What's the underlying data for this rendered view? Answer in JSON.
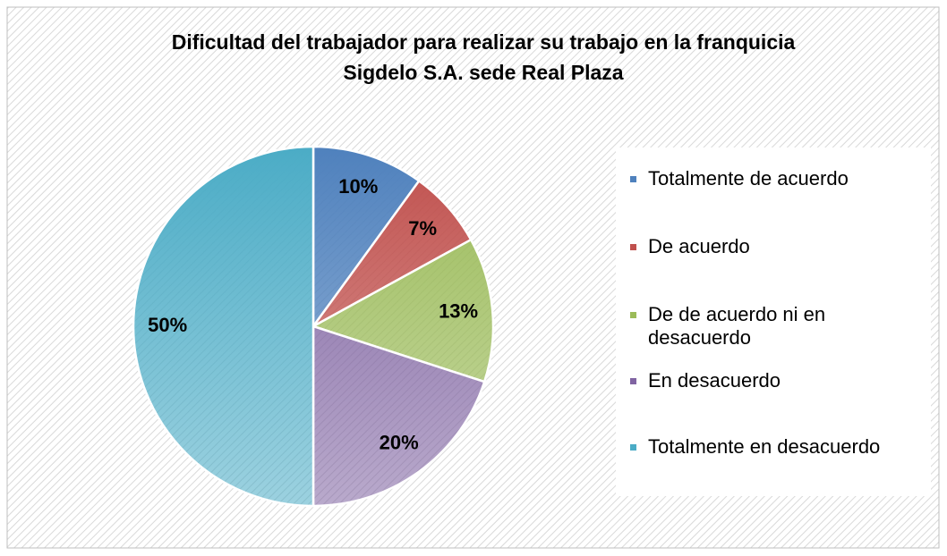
{
  "chart_data": {
    "type": "pie",
    "title": "Dificultad del trabajador para realizar su trabajo en la franquicia Sigdelo S.A. sede Real Plaza",
    "categories": [
      "Totalmente de acuerdo",
      "De acuerdo",
      "De de acuerdo ni en desacuerdo",
      "En desacuerdo",
      "Totalmente en desacuerdo"
    ],
    "values": [
      10,
      7,
      13,
      20,
      50
    ],
    "value_labels": [
      "10%",
      "7%",
      "13%",
      "20%",
      "50%"
    ],
    "colors": [
      "#4f81bd",
      "#c0504d",
      "#9bbb59",
      "#8064a2",
      "#4bacc6"
    ],
    "legend": "right"
  }
}
